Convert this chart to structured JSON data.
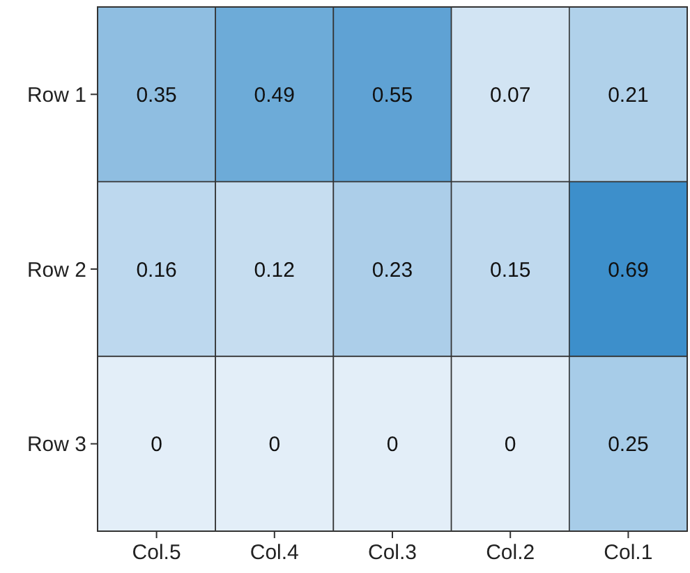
{
  "chart_data": {
    "type": "heatmap",
    "categories": [
      "Col.5",
      "Col.4",
      "Col.3",
      "Col.2",
      "Col.1"
    ],
    "y_categories": [
      "Row 1",
      "Row 2",
      "Row 3"
    ],
    "cells": [
      [
        0.35,
        0.49,
        0.55,
        0.07,
        0.21
      ],
      [
        0.16,
        0.12,
        0.23,
        0.15,
        0.69
      ],
      [
        0,
        0,
        0,
        0,
        0.25
      ]
    ],
    "data_labels": true
  }
}
